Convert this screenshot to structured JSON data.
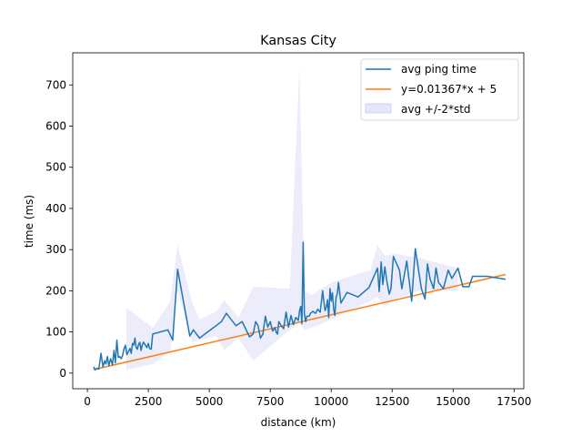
{
  "chart_data": {
    "type": "line",
    "title": "Kansas City",
    "xlabel": "distance (km)",
    "ylabel": "time (ms)",
    "xlim": [
      -600,
      17900
    ],
    "ylim": [
      -38,
      778
    ],
    "xticks": [
      0,
      2500,
      5000,
      7500,
      10000,
      12500,
      15000,
      17500
    ],
    "yticks": [
      0,
      100,
      200,
      300,
      400,
      500,
      600,
      700
    ],
    "grid": false,
    "legend_position": "top-right",
    "colors": {
      "avg": "#1f77b4",
      "fit": "#ff7f0e",
      "band": "#e6e6fa"
    },
    "series": [
      {
        "name": "avg ping time",
        "kind": "line",
        "x": [
          250,
          330,
          400,
          470,
          560,
          640,
          710,
          760,
          820,
          880,
          950,
          1030,
          1090,
          1150,
          1210,
          1270,
          1320,
          1380,
          1440,
          1500,
          1560,
          1620,
          1680,
          1750,
          1800,
          1850,
          1900,
          1950,
          2000,
          2050,
          2100,
          2150,
          2200,
          2250,
          2300,
          2380,
          2440,
          2500,
          2550,
          2620,
          2680,
          3300,
          3500,
          3700,
          4200,
          4350,
          4600,
          5500,
          5700,
          6100,
          6350,
          6650,
          6800,
          6900,
          7000,
          7100,
          7200,
          7300,
          7400,
          7500,
          7600,
          7700,
          7750,
          7800,
          7850,
          7950,
          8050,
          8150,
          8250,
          8350,
          8450,
          8550,
          8650,
          8700,
          8750,
          8800,
          8850,
          8900,
          8950,
          9000,
          9100,
          9150,
          9250,
          9350,
          9450,
          9550,
          9650,
          9700,
          9750,
          9800,
          9850,
          9900,
          9950,
          10000,
          10050,
          10100,
          10150,
          10200,
          10250,
          10300,
          10400,
          10650,
          11100,
          11550,
          11900,
          11970,
          12050,
          12120,
          12200,
          12280,
          12380,
          12450,
          12550,
          12800,
          12900,
          13100,
          13300,
          13450,
          13700,
          13850,
          13950,
          14050,
          14200,
          14300,
          14400,
          14600,
          14800,
          14950,
          15200,
          15400,
          15650,
          15800,
          16400,
          17150
        ],
        "y": [
          15,
          8,
          12,
          10,
          48,
          15,
          30,
          22,
          40,
          18,
          35,
          20,
          55,
          25,
          80,
          38,
          40,
          35,
          42,
          58,
          68,
          45,
          52,
          60,
          48,
          72,
          68,
          85,
          62,
          58,
          70,
          75,
          55,
          68,
          75,
          68,
          62,
          72,
          60,
          58,
          95,
          105,
          80,
          252,
          90,
          105,
          85,
          125,
          145,
          115,
          125,
          88,
          95,
          125,
          115,
          85,
          95,
          138,
          112,
          125,
          102,
          110,
          98,
          95,
          125,
          115,
          108,
          148,
          112,
          140,
          118,
          135,
          128,
          150,
          162,
          120,
          318,
          145,
          125,
          138,
          138,
          145,
          150,
          145,
          155,
          148,
          200,
          172,
          152,
          160,
          178,
          135,
          205,
          175,
          195,
          155,
          140,
          185,
          192,
          220,
          170,
          196,
          185,
          208,
          255,
          198,
          270,
          215,
          258,
          225,
          192,
          205,
          283,
          250,
          205,
          272,
          175,
          302,
          205,
          180,
          265,
          230,
          205,
          255,
          220,
          205,
          250,
          230,
          255,
          210,
          210,
          235,
          235,
          228
        ],
        "display_decimals": 1
      },
      {
        "name": "y=0.01367*x + 5",
        "kind": "fit",
        "slope": 0.01367,
        "intercept": 5,
        "x": [
          250,
          17150
        ]
      },
      {
        "name": "avg +/-2*std",
        "kind": "band",
        "x": [
          1600,
          2700,
          3400,
          3700,
          4300,
          4600,
          5300,
          5600,
          6200,
          6800,
          8300,
          8700,
          8900,
          9200,
          10000,
          11600,
          11900,
          12200,
          12600,
          13600,
          15200
        ],
        "upper": [
          158,
          110,
          175,
          312,
          170,
          130,
          150,
          178,
          135,
          210,
          205,
          745,
          200,
          190,
          220,
          250,
          310,
          285,
          290,
          280,
          255
        ],
        "lower": [
          8,
          22,
          55,
          200,
          75,
          80,
          90,
          55,
          85,
          30,
          105,
          120,
          105,
          110,
          130,
          175,
          185,
          160,
          180,
          200,
          200
        ]
      }
    ]
  }
}
